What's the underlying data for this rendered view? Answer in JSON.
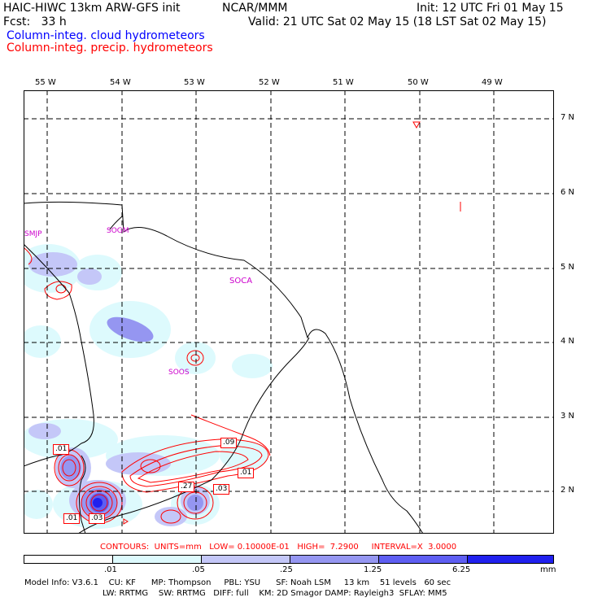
{
  "header": {
    "model_title": "HAIC-HIWC 13km ARW-GFS init",
    "org": "NCAR/MMM",
    "init": "Init: 12 UTC Fri 01 May 15",
    "fcst": "Fcst:   33 h",
    "valid": "Valid: 21 UTC Sat 02 May 15 (18 LST Sat 02 May 15)",
    "field_cloud": "Column-integ. cloud hydrometeors",
    "field_precip": "Column-integ. precip. hydrometeors",
    "cloud_color": "#0000ff",
    "precip_color": "#ff0000"
  },
  "map": {
    "lon_labels": [
      "55 W",
      "54 W",
      "53 W",
      "52 W",
      "51 W",
      "50 W",
      "49 W"
    ],
    "lat_labels": [
      "7 N",
      "6 N",
      "5 N",
      "4 N",
      "3 N",
      "2 N"
    ],
    "stations": [
      "SMJP",
      "SOGM",
      "SOCA",
      "SOOS"
    ],
    "contour_labels": [
      ".01",
      ".09",
      ".01",
      ".27",
      ".03",
      ".01",
      ".03"
    ]
  },
  "footer": {
    "contours": "CONTOURS:  UNITS=mm   LOW= 0.10000E-01   HIGH=  7.2900     INTERVAL=X  3.0000",
    "scale_ticks": [
      ".01",
      ".05",
      ".25",
      "1.25",
      "6.25"
    ],
    "scale_unit": "mm",
    "scale_colors": [
      "#ffffff",
      "#ddfafd",
      "#c4c7f8",
      "#9596f1",
      "#5e5ef2",
      "#2020ee"
    ],
    "model_info_1": "Model Info: V3.6.1    CU: KF      MP: Thompson     PBL: YSU      SF: Noah LSM     13 km    51 levels   60 sec",
    "model_info_2": "LW: RRTMG    SW: RRTMG   DIFF: full    KM: 2D Smagor DAMP: Rayleigh3  SFLAY: MM5"
  }
}
